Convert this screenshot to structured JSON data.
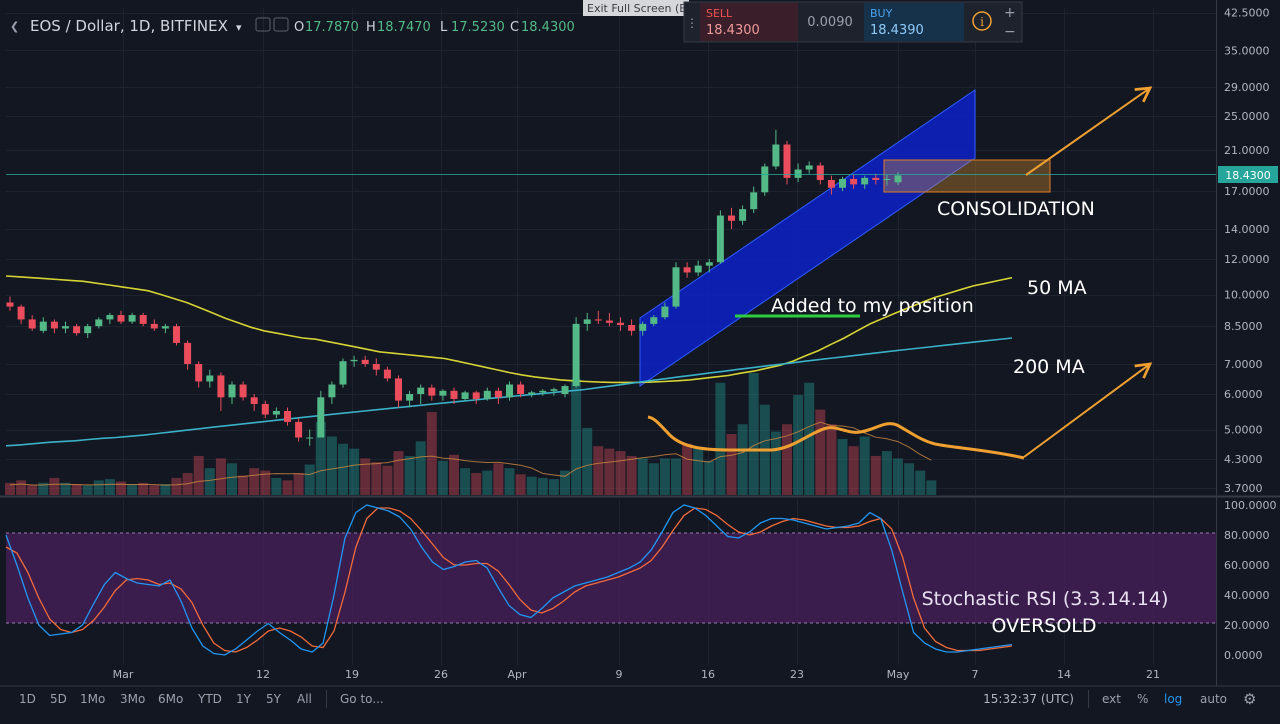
{
  "header": {
    "symbol": "EOS / Dollar, 1D, BITFINEX",
    "ohlc": [
      {
        "k": "O",
        "v": "17.7870"
      },
      {
        "k": "H",
        "v": "18.7470"
      },
      {
        "k": "L",
        "v": "17.5230"
      },
      {
        "k": "C",
        "v": "18.4300"
      }
    ]
  },
  "trade_widget": {
    "exit_label": "Exit Full Screen (E",
    "sell_label": "SELL",
    "sell_price": "18.4300",
    "spread": "0.0090",
    "buy_label": "BUY",
    "buy_price": "18.4390",
    "plus": "+",
    "minus": "−",
    "info": "i"
  },
  "bottom_bar": {
    "ranges": [
      "1D",
      "5D",
      "1Mo",
      "3Mo",
      "6Mo",
      "YTD",
      "1Y",
      "5Y",
      "All"
    ],
    "goto": "Go to...",
    "time": "15:32:37 (UTC)",
    "ext": "ext",
    "percent": "%",
    "log": "log",
    "auto": "auto"
  },
  "colors": {
    "background": "#131722",
    "up": "#26a69a",
    "up_candle": "#53b987",
    "down": "#eb4d5c",
    "ma50": "#d6d433",
    "ma200": "#3ab1c8",
    "stoch_k": "#2196f3",
    "stoch_d": "#f26b3a",
    "channel": "#0c21c8",
    "annotation": "#f0a030",
    "stoch_band": "#4b2160"
  },
  "chart_data": [
    {
      "type": "candlestick",
      "scale": "log",
      "yticks": [
        "42.5000",
        "35.0000",
        "29.0000",
        "25.0000",
        "21.0000",
        "17.0000",
        "14.0000",
        "12.0000",
        "10.0000",
        "8.5000",
        "7.0000",
        "6.0000",
        "5.0000",
        "4.3000",
        "3.7000"
      ],
      "ylim": [
        3.5,
        44
      ],
      "last_price": "18.4300",
      "xticks": [
        "Mar",
        "12",
        "19",
        "26",
        "Apr",
        "9",
        "16",
        "23",
        "May",
        "7",
        "14",
        "21"
      ],
      "candles": [
        {
          "d": "Feb 20",
          "o": 9.6,
          "h": 9.9,
          "l": 9.2,
          "c": 9.4
        },
        {
          "d": "Feb 21",
          "o": 9.4,
          "h": 9.5,
          "l": 8.6,
          "c": 8.8
        },
        {
          "d": "Feb 22",
          "o": 8.8,
          "h": 9.0,
          "l": 8.3,
          "c": 8.4
        },
        {
          "d": "Feb 23",
          "o": 8.3,
          "h": 8.9,
          "l": 8.2,
          "c": 8.7
        },
        {
          "d": "Feb 24",
          "o": 8.7,
          "h": 8.8,
          "l": 8.2,
          "c": 8.4
        },
        {
          "d": "Feb 25",
          "o": 8.4,
          "h": 8.7,
          "l": 8.2,
          "c": 8.5
        },
        {
          "d": "Feb 26",
          "o": 8.5,
          "h": 8.6,
          "l": 8.1,
          "c": 8.2
        },
        {
          "d": "Feb 27",
          "o": 8.2,
          "h": 8.6,
          "l": 8.0,
          "c": 8.5
        },
        {
          "d": "Feb 28",
          "o": 8.5,
          "h": 8.9,
          "l": 8.4,
          "c": 8.8
        },
        {
          "d": "Mar 1",
          "o": 8.8,
          "h": 9.1,
          "l": 8.6,
          "c": 9.0
        },
        {
          "d": "Mar 2",
          "o": 9.0,
          "h": 9.2,
          "l": 8.6,
          "c": 8.7
        },
        {
          "d": "Mar 3",
          "o": 8.7,
          "h": 9.1,
          "l": 8.6,
          "c": 9.0
        },
        {
          "d": "Mar 4",
          "o": 9.0,
          "h": 9.1,
          "l": 8.5,
          "c": 8.6
        },
        {
          "d": "Mar 5",
          "o": 8.6,
          "h": 8.8,
          "l": 8.3,
          "c": 8.4
        },
        {
          "d": "Mar 6",
          "o": 8.4,
          "h": 8.6,
          "l": 8.2,
          "c": 8.5
        },
        {
          "d": "Mar 7",
          "o": 8.5,
          "h": 8.6,
          "l": 7.7,
          "c": 7.8
        },
        {
          "d": "Mar 8",
          "o": 7.8,
          "h": 7.9,
          "l": 6.8,
          "c": 7.0
        },
        {
          "d": "Mar 9",
          "o": 7.0,
          "h": 7.1,
          "l": 6.2,
          "c": 6.4
        },
        {
          "d": "Mar 10",
          "o": 6.4,
          "h": 6.8,
          "l": 6.2,
          "c": 6.6
        },
        {
          "d": "Mar 11",
          "o": 6.6,
          "h": 6.7,
          "l": 5.5,
          "c": 5.9
        },
        {
          "d": "Mar 12",
          "o": 5.9,
          "h": 6.4,
          "l": 5.7,
          "c": 6.3
        },
        {
          "d": "Mar 13",
          "o": 6.3,
          "h": 6.4,
          "l": 5.8,
          "c": 5.9
        },
        {
          "d": "Mar 14",
          "o": 5.9,
          "h": 6.0,
          "l": 5.5,
          "c": 5.7
        },
        {
          "d": "Mar 15",
          "o": 5.7,
          "h": 5.8,
          "l": 5.3,
          "c": 5.4
        },
        {
          "d": "Mar 16",
          "o": 5.4,
          "h": 5.6,
          "l": 5.3,
          "c": 5.5
        },
        {
          "d": "Mar 17",
          "o": 5.5,
          "h": 5.6,
          "l": 5.1,
          "c": 5.2
        },
        {
          "d": "Mar 18",
          "o": 5.2,
          "h": 5.3,
          "l": 4.7,
          "c": 4.8
        },
        {
          "d": "Mar 19",
          "o": 4.8,
          "h": 5.0,
          "l": 4.6,
          "c": 4.8
        },
        {
          "d": "Mar 20",
          "o": 4.8,
          "h": 6.1,
          "l": 4.8,
          "c": 5.9
        },
        {
          "d": "Mar 21",
          "o": 5.9,
          "h": 6.4,
          "l": 5.7,
          "c": 6.3
        },
        {
          "d": "Mar 22",
          "o": 6.3,
          "h": 7.2,
          "l": 6.2,
          "c": 7.1
        },
        {
          "d": "Mar 23",
          "o": 7.1,
          "h": 7.3,
          "l": 6.9,
          "c": 7.15
        },
        {
          "d": "Mar 24",
          "o": 7.15,
          "h": 7.3,
          "l": 6.9,
          "c": 7.0
        },
        {
          "d": "Mar 25",
          "o": 7.0,
          "h": 7.2,
          "l": 6.6,
          "c": 6.8
        },
        {
          "d": "Mar 26",
          "o": 6.8,
          "h": 6.9,
          "l": 6.4,
          "c": 6.5
        },
        {
          "d": "Mar 27",
          "o": 6.5,
          "h": 6.6,
          "l": 5.6,
          "c": 5.8
        },
        {
          "d": "Mar 28",
          "o": 5.8,
          "h": 6.1,
          "l": 5.6,
          "c": 6.0
        },
        {
          "d": "Mar 29",
          "o": 6.0,
          "h": 6.3,
          "l": 5.7,
          "c": 6.2
        },
        {
          "d": "Mar 30",
          "o": 6.2,
          "h": 6.3,
          "l": 5.8,
          "c": 5.95
        },
        {
          "d": "Mar 31",
          "o": 5.95,
          "h": 6.15,
          "l": 5.8,
          "c": 6.1
        },
        {
          "d": "Apr 1",
          "o": 6.1,
          "h": 6.2,
          "l": 5.7,
          "c": 5.85
        },
        {
          "d": "Apr 2",
          "o": 5.85,
          "h": 6.1,
          "l": 5.8,
          "c": 6.05
        },
        {
          "d": "Apr 3",
          "o": 6.05,
          "h": 6.1,
          "l": 5.7,
          "c": 5.85
        },
        {
          "d": "Apr 4",
          "o": 5.85,
          "h": 6.2,
          "l": 5.8,
          "c": 6.1
        },
        {
          "d": "Apr 5",
          "o": 6.1,
          "h": 6.2,
          "l": 5.7,
          "c": 5.9
        },
        {
          "d": "Apr 6",
          "o": 5.9,
          "h": 6.4,
          "l": 5.8,
          "c": 6.3
        },
        {
          "d": "Apr 7",
          "o": 6.3,
          "h": 6.4,
          "l": 5.9,
          "c": 6.0
        },
        {
          "d": "Apr 8",
          "o": 6.0,
          "h": 6.1,
          "l": 5.9,
          "c": 6.05
        },
        {
          "d": "Apr 9",
          "o": 6.05,
          "h": 6.15,
          "l": 5.95,
          "c": 6.1
        },
        {
          "d": "Apr 10",
          "o": 6.1,
          "h": 6.2,
          "l": 5.95,
          "c": 6.15
        },
        {
          "d": "Apr 11",
          "o": 6.0,
          "h": 6.3,
          "l": 5.9,
          "c": 6.25
        },
        {
          "d": "Apr 12",
          "o": 6.25,
          "h": 8.9,
          "l": 6.2,
          "c": 8.6
        },
        {
          "d": "Apr 13",
          "o": 8.6,
          "h": 9.1,
          "l": 8.3,
          "c": 8.8
        },
        {
          "d": "Apr 14",
          "o": 8.8,
          "h": 9.2,
          "l": 8.6,
          "c": 8.75
        },
        {
          "d": "Apr 15",
          "o": 8.75,
          "h": 9.1,
          "l": 8.5,
          "c": 8.65
        },
        {
          "d": "Apr 16",
          "o": 8.65,
          "h": 8.9,
          "l": 8.3,
          "c": 8.55
        },
        {
          "d": "Apr 17",
          "o": 8.55,
          "h": 8.8,
          "l": 8.1,
          "c": 8.3
        },
        {
          "d": "Apr 18",
          "o": 8.3,
          "h": 8.7,
          "l": 8.1,
          "c": 8.6
        },
        {
          "d": "Apr 19",
          "o": 8.6,
          "h": 9.0,
          "l": 8.5,
          "c": 8.9
        },
        {
          "d": "Apr 20",
          "o": 8.9,
          "h": 9.6,
          "l": 8.8,
          "c": 9.4
        },
        {
          "d": "Apr 21",
          "o": 9.4,
          "h": 11.8,
          "l": 9.3,
          "c": 11.5
        },
        {
          "d": "Apr 22",
          "o": 11.5,
          "h": 11.8,
          "l": 10.9,
          "c": 11.2
        },
        {
          "d": "Apr 23",
          "o": 11.2,
          "h": 11.9,
          "l": 11.0,
          "c": 11.6
        },
        {
          "d": "Apr 24",
          "o": 11.6,
          "h": 12.0,
          "l": 11.2,
          "c": 11.8
        },
        {
          "d": "Apr 25",
          "o": 11.8,
          "h": 15.4,
          "l": 11.7,
          "c": 15.0
        },
        {
          "d": "Apr 26",
          "o": 15.0,
          "h": 15.6,
          "l": 14.0,
          "c": 14.6
        },
        {
          "d": "Apr 27",
          "o": 14.6,
          "h": 15.8,
          "l": 14.3,
          "c": 15.5
        },
        {
          "d": "Apr 28",
          "o": 15.5,
          "h": 17.4,
          "l": 15.2,
          "c": 16.9
        },
        {
          "d": "Apr 29",
          "o": 16.9,
          "h": 19.6,
          "l": 16.6,
          "c": 19.3
        },
        {
          "d": "Apr 30",
          "o": 19.3,
          "h": 23.3,
          "l": 19.0,
          "c": 21.6
        },
        {
          "d": "May 1",
          "o": 21.6,
          "h": 22.0,
          "l": 17.6,
          "c": 18.2
        },
        {
          "d": "May 2",
          "o": 18.2,
          "h": 19.6,
          "l": 17.8,
          "c": 19.0
        },
        {
          "d": "May 3",
          "o": 19.0,
          "h": 19.8,
          "l": 18.6,
          "c": 19.4
        },
        {
          "d": "May 4",
          "o": 19.4,
          "h": 19.7,
          "l": 17.6,
          "c": 18.0
        },
        {
          "d": "May 5",
          "o": 18.0,
          "h": 18.4,
          "l": 16.7,
          "c": 17.3
        },
        {
          "d": "May 6",
          "o": 17.3,
          "h": 18.3,
          "l": 17.0,
          "c": 18.1
        },
        {
          "d": "May 7",
          "o": 18.1,
          "h": 18.5,
          "l": 17.2,
          "c": 17.6
        },
        {
          "d": "May 8",
          "o": 17.6,
          "h": 18.4,
          "l": 17.2,
          "c": 18.2
        },
        {
          "d": "May 9",
          "o": 18.2,
          "h": 18.6,
          "l": 17.6,
          "c": 18.0
        },
        {
          "d": "May 10",
          "o": 18.0,
          "h": 18.5,
          "l": 17.5,
          "c": 18.1
        },
        {
          "d": "May 11",
          "o": 17.79,
          "h": 18.75,
          "l": 17.52,
          "c": 18.43
        }
      ],
      "volume_relative": [
        0.1,
        0.12,
        0.08,
        0.1,
        0.14,
        0.1,
        0.09,
        0.08,
        0.12,
        0.13,
        0.11,
        0.09,
        0.1,
        0.08,
        0.09,
        0.14,
        0.18,
        0.32,
        0.22,
        0.3,
        0.26,
        0.16,
        0.22,
        0.2,
        0.14,
        0.12,
        0.18,
        0.25,
        0.6,
        0.48,
        0.42,
        0.38,
        0.3,
        0.27,
        0.24,
        0.36,
        0.32,
        0.44,
        0.68,
        0.28,
        0.33,
        0.22,
        0.18,
        0.2,
        0.26,
        0.22,
        0.17,
        0.15,
        0.14,
        0.13,
        0.2,
        0.95,
        0.55,
        0.4,
        0.38,
        0.36,
        0.32,
        0.3,
        0.26,
        0.3,
        0.3,
        0.42,
        0.38,
        0.28,
        0.92,
        0.5,
        0.58,
        1.0,
        0.74,
        0.52,
        0.58,
        0.82,
        0.92,
        0.7,
        0.58,
        0.46,
        0.4,
        0.48,
        0.32,
        0.36,
        0.3,
        0.26,
        0.2,
        0.12
      ],
      "ma50": [
        11.0,
        10.95,
        10.9,
        10.85,
        10.8,
        10.75,
        10.7,
        10.6,
        10.5,
        10.4,
        10.3,
        10.2,
        10.0,
        9.8,
        9.6,
        9.35,
        9.1,
        8.85,
        8.65,
        8.45,
        8.3,
        8.2,
        8.1,
        8.0,
        7.95,
        7.85,
        7.75,
        7.65,
        7.55,
        7.45,
        7.4,
        7.35,
        7.3,
        7.25,
        7.2,
        7.1,
        7.0,
        6.9,
        6.8,
        6.7,
        6.62,
        6.55,
        6.5,
        6.45,
        6.42,
        6.4,
        6.38,
        6.37,
        6.37,
        6.37,
        6.38,
        6.4,
        6.42,
        6.45,
        6.5,
        6.55,
        6.6,
        6.68,
        6.75,
        6.85,
        6.95,
        7.1,
        7.3,
        7.5,
        7.75,
        8.0,
        8.3,
        8.6,
        8.85,
        9.1,
        9.35,
        9.6,
        9.85,
        10.05,
        10.25,
        10.45,
        10.6,
        10.75,
        10.9
      ],
      "ma200": [
        4.6,
        4.62,
        4.65,
        4.68,
        4.7,
        4.72,
        4.75,
        4.78,
        4.8,
        4.83,
        4.86,
        4.9,
        4.94,
        4.98,
        5.02,
        5.06,
        5.1,
        5.14,
        5.18,
        5.22,
        5.26,
        5.3,
        5.34,
        5.38,
        5.42,
        5.46,
        5.5,
        5.54,
        5.58,
        5.62,
        5.66,
        5.7,
        5.74,
        5.78,
        5.82,
        5.86,
        5.9,
        5.94,
        5.98,
        6.02,
        6.06,
        6.1,
        6.14,
        6.2,
        6.26,
        6.32,
        6.38,
        6.44,
        6.5,
        6.56,
        6.62,
        6.68,
        6.74,
        6.8,
        6.86,
        6.92,
        6.98,
        7.04,
        7.1,
        7.16,
        7.22,
        7.28,
        7.34,
        7.4,
        7.46,
        7.52,
        7.58,
        7.64,
        7.7,
        7.76,
        7.82,
        7.88,
        7.94,
        8.0
      ]
    },
    {
      "type": "line",
      "name": "Stochastic RSI (3.3.14.14)",
      "ylim": [
        0,
        100
      ],
      "yticks": [
        "100.0000",
        "80.0000",
        "60.0000",
        "40.0000",
        "20.0000",
        "0.0000"
      ],
      "band": [
        20,
        80
      ],
      "k": [
        80,
        60,
        38,
        20,
        13,
        14,
        15,
        20,
        34,
        47,
        55,
        51,
        48,
        47,
        46,
        50,
        36,
        18,
        6,
        1,
        0,
        4,
        10,
        16,
        21,
        15,
        10,
        4,
        2,
        8,
        40,
        78,
        95,
        100,
        98,
        96,
        92,
        84,
        72,
        62,
        57,
        59,
        62,
        63,
        58,
        45,
        33,
        27,
        25,
        31,
        38,
        42,
        46,
        48,
        50,
        52,
        55,
        58,
        62,
        70,
        82,
        95,
        100,
        98,
        93,
        86,
        79,
        78,
        82,
        88,
        91,
        91,
        90,
        88,
        86,
        84,
        85,
        86,
        88,
        95,
        91,
        70,
        42,
        15,
        8,
        4,
        2,
        2,
        3,
        4,
        5,
        6,
        7
      ],
      "d": [
        72,
        68,
        55,
        38,
        24,
        17,
        15,
        17,
        23,
        32,
        43,
        50,
        51,
        50,
        47,
        48,
        44,
        35,
        20,
        8,
        3,
        2,
        5,
        10,
        16,
        18,
        16,
        12,
        6,
        5,
        16,
        42,
        72,
        91,
        98,
        98,
        96,
        91,
        83,
        74,
        65,
        60,
        60,
        61,
        61,
        56,
        47,
        37,
        30,
        28,
        31,
        36,
        42,
        46,
        48,
        50,
        52,
        55,
        58,
        63,
        72,
        83,
        93,
        98,
        97,
        93,
        87,
        82,
        80,
        82,
        86,
        89,
        91,
        90,
        88,
        86,
        85,
        85,
        86,
        89,
        91,
        84,
        65,
        38,
        18,
        9,
        5,
        3,
        3,
        3,
        4,
        5,
        6
      ]
    }
  ],
  "annotations": {
    "consolidation": "CONSOLIDATION",
    "ma50": "50 MA",
    "ma200": "200 MA",
    "added": "Added to my position",
    "stoch_title": "Stochastic RSI (3.3.14.14)",
    "oversold": "OVERSOLD"
  }
}
